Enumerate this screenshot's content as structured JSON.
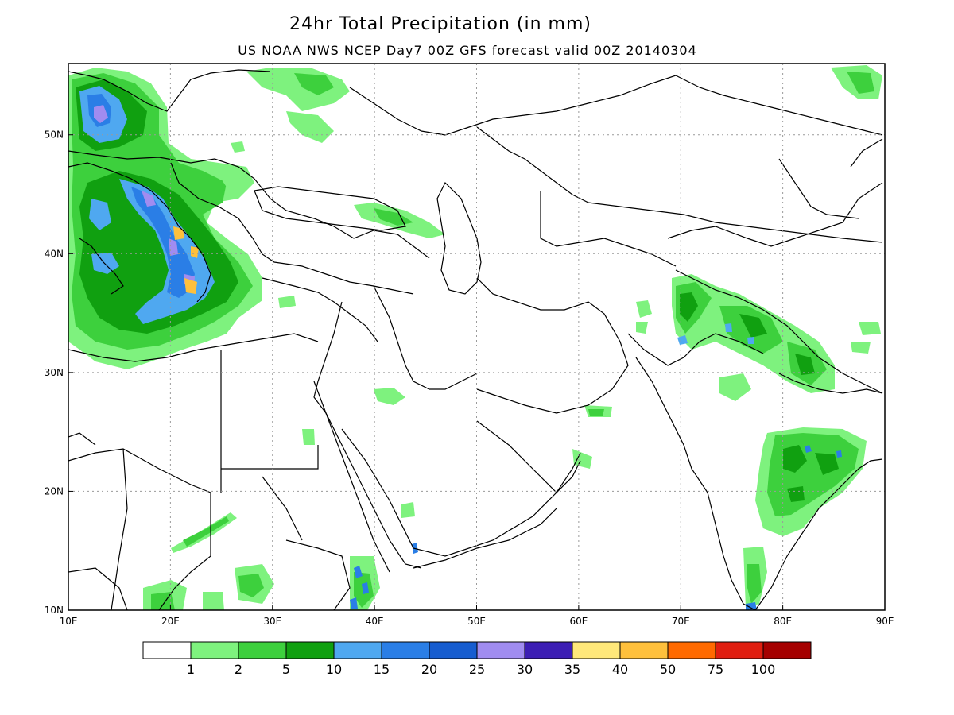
{
  "title": "24hr Total Precipitation (in mm)",
  "subtitle": "US NOAA NWS NCEP Day7 00Z GFS forecast valid 00Z 20140304",
  "map": {
    "lon_range": [
      10,
      90
    ],
    "lat_range": [
      10,
      56
    ],
    "x_ticks": [
      "10E",
      "20E",
      "30E",
      "40E",
      "50E",
      "60E",
      "70E",
      "80E",
      "90E"
    ],
    "y_ticks": [
      "10N",
      "20N",
      "30N",
      "40N",
      "50N"
    ],
    "grid": true,
    "grid_style": "dotted"
  },
  "colorbar": {
    "colors": [
      "#ffffff",
      "#7ef27e",
      "#3dd03d",
      "#10a010",
      "#4fa8f0",
      "#2a7ee6",
      "#175dd0",
      "#a08cf0",
      "#3c1eb4",
      "#ffe87a",
      "#ffc03c",
      "#ff6a00",
      "#e01e10",
      "#a50000"
    ],
    "labels": [
      "1",
      "2",
      "5",
      "10",
      "15",
      "20",
      "25",
      "30",
      "35",
      "40",
      "50",
      "75",
      "100"
    ]
  },
  "colors": {
    "light_green": "#7ef27e",
    "green": "#3dd03d",
    "dark_green": "#10a010",
    "light_blue": "#4fa8f0",
    "blue": "#2a7ee6",
    "dark_blue": "#175dd0",
    "lavender": "#a08cf0",
    "purple": "#3c1eb4",
    "yellow": "#ffe87a",
    "orange": "#ffc03c"
  }
}
